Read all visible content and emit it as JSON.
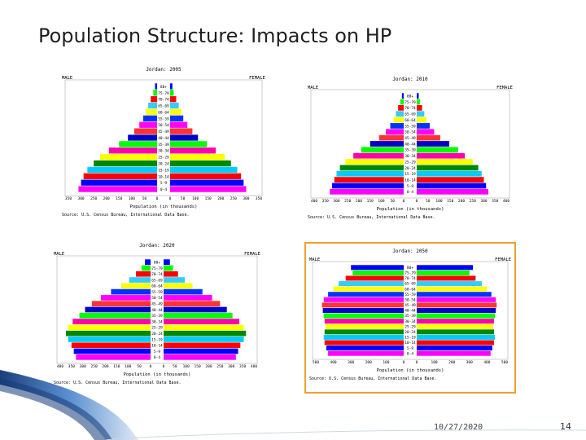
{
  "slide": {
    "title": "Population Structure: Impacts on HP",
    "date": "10/27/2020",
    "page_number": "14"
  },
  "colors": [
    "#ff00ff",
    "#0000ff",
    "#ff0000",
    "#00ccff",
    "#008800",
    "#ffff00",
    "#ff00aa",
    "#00ff00",
    "#0000cc",
    "#ff3333",
    "#ff00ff",
    "#0033ff",
    "#ffff00",
    "#33ccff",
    "#ff0000",
    "#00ff00",
    "#0000ff"
  ],
  "chart_data": [
    {
      "type": "bar",
      "title": "Jordan: 2005",
      "left_label": "MALE",
      "right_label": "FEMALE",
      "xlabel": "Population (in thousands)",
      "source": "Source: U.S. Census Bureau, International Data Base.",
      "age_groups": [
        "0-4",
        "5-9",
        "10-14",
        "15-19",
        "20-24",
        "25-29",
        "30-34",
        "35-39",
        "40-44",
        "45-49",
        "50-54",
        "55-59",
        "60-64",
        "65-69",
        "70-74",
        "75-79",
        "80+"
      ],
      "ticks_left": [
        "350",
        "300",
        "250",
        "200",
        "150",
        "100",
        "50",
        "0"
      ],
      "ticks_right": [
        "0",
        "50",
        "100",
        "150",
        "200",
        "250",
        "300",
        "350"
      ],
      "xmax": 350,
      "male": [
        310,
        300,
        290,
        275,
        250,
        225,
        190,
        150,
        115,
        90,
        70,
        55,
        45,
        35,
        25,
        15,
        8
      ],
      "female": [
        300,
        290,
        280,
        265,
        240,
        215,
        180,
        145,
        110,
        88,
        68,
        52,
        44,
        34,
        24,
        14,
        9
      ],
      "orange_border": false
    },
    {
      "type": "bar",
      "title": "Jordan: 2010",
      "left_label": "MALE",
      "right_label": "FEMALE",
      "xlabel": "Population (in thousands)",
      "source": "Source: U.S. Census Bureau, International Data Base.",
      "age_groups": [
        "0-4",
        "5-9",
        "10-14",
        "15-19",
        "20-24",
        "25-29",
        "30-34",
        "35-39",
        "40-44",
        "45-49",
        "50-54",
        "55-59",
        "60-64",
        "65-69",
        "70-74",
        "75-79",
        "80+"
      ],
      "ticks_left": [
        "400",
        "350",
        "300",
        "250",
        "200",
        "150",
        "100",
        "50",
        "0"
      ],
      "ticks_right": [
        "0",
        "50",
        "100",
        "150",
        "200",
        "250",
        "300",
        "350",
        "400"
      ],
      "xmax": 400,
      "male": [
        330,
        320,
        310,
        300,
        285,
        260,
        225,
        190,
        150,
        110,
        80,
        60,
        45,
        35,
        25,
        15,
        8
      ],
      "female": [
        320,
        310,
        300,
        290,
        275,
        250,
        215,
        185,
        145,
        105,
        78,
        58,
        44,
        34,
        24,
        14,
        9
      ],
      "orange_border": false
    },
    {
      "type": "bar",
      "title": "Jordan: 2020",
      "left_label": "MALE",
      "right_label": "FEMALE",
      "xlabel": "Population (in thousands)",
      "source": "Source: U.S. Census Bureau, International Data Base.",
      "age_groups": [
        "0-4",
        "5-9",
        "10-14",
        "15-19",
        "20-24",
        "25-29",
        "30-34",
        "35-39",
        "40-44",
        "45-49",
        "50-54",
        "55-59",
        "60-64",
        "65-69",
        "70-74",
        "75-79",
        "80+"
      ],
      "ticks_left": [
        "400",
        "350",
        "300",
        "250",
        "200",
        "150",
        "100",
        "50",
        "0"
      ],
      "ticks_right": [
        "0",
        "50",
        "100",
        "150",
        "200",
        "250",
        "300",
        "350",
        "400"
      ],
      "xmax": 400,
      "male": [
        330,
        340,
        350,
        365,
        375,
        365,
        345,
        315,
        290,
        260,
        220,
        175,
        130,
        95,
        65,
        40,
        25
      ],
      "female": [
        320,
        330,
        340,
        355,
        365,
        355,
        335,
        305,
        280,
        250,
        215,
        172,
        128,
        94,
        64,
        42,
        28
      ],
      "orange_border": false
    },
    {
      "type": "bar",
      "title": "Jordan: 2050",
      "left_label": "MALE",
      "right_label": "FEMALE",
      "xlabel": "Population (in thousands)",
      "source": "Source: U.S. Census Bureau, International Data Base.",
      "age_groups": [
        "0-4",
        "5-9",
        "10-14",
        "15-19",
        "20-24",
        "25-29",
        "30-34",
        "35-39",
        "40-44",
        "45-49",
        "50-54",
        "55-59",
        "60-64",
        "65-69",
        "70-74",
        "75-79",
        "80+"
      ],
      "ticks_left": [
        "500",
        "400",
        "300",
        "200",
        "100",
        "0"
      ],
      "ticks_right": [
        "0",
        "100",
        "200",
        "300",
        "400",
        "500"
      ],
      "xmax": 500,
      "male": [
        430,
        440,
        450,
        455,
        450,
        445,
        450,
        455,
        460,
        465,
        455,
        430,
        400,
        370,
        330,
        290,
        300
      ],
      "female": [
        420,
        430,
        440,
        445,
        440,
        435,
        440,
        445,
        450,
        455,
        450,
        425,
        400,
        370,
        335,
        300,
        320
      ],
      "orange_border": true
    }
  ]
}
